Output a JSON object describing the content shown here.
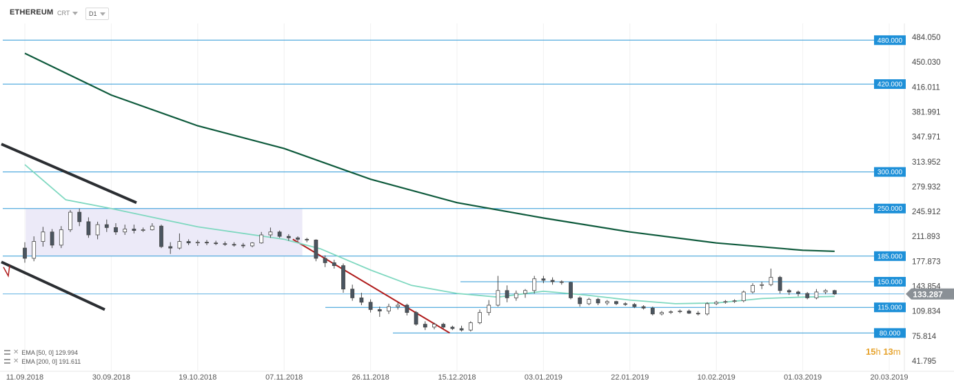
{
  "toolbar": {
    "symbol": "ETHEREUM",
    "type_label": "CRT",
    "timeframe": "D1"
  },
  "timer": {
    "hours": "15",
    "h_unit": "h",
    "minutes": "13",
    "m_unit": "m"
  },
  "indicators": [
    {
      "label": "EMA [50, 0] 129.994",
      "color": "#7fd8c0"
    },
    {
      "label": "EMA [200, 0] 191.611",
      "color": "#0e5a3c"
    }
  ],
  "chart_data": {
    "type": "candlestick",
    "ylim": [
      41.795,
      500
    ],
    "y_ticks": [
      "484.050",
      "450.030",
      "416.011",
      "381.991",
      "347.971",
      "313.952",
      "279.932",
      "245.912",
      "211.893",
      "177.873",
      "143.854",
      "109.834",
      "75.814",
      "41.795"
    ],
    "x_ticks": [
      "11.09.2018",
      "30.09.2018",
      "19.10.2018",
      "07.11.2018",
      "26.11.2018",
      "15.12.2018",
      "03.01.2019",
      "22.01.2019",
      "10.02.2019",
      "01.03.2019",
      "20.03.2019"
    ],
    "last_price": "133.287",
    "horizontal_levels": [
      {
        "label": "480.000",
        "value": 480
      },
      {
        "label": "420.000",
        "value": 420
      },
      {
        "label": "300.000",
        "value": 300
      },
      {
        "label": "250.000",
        "value": 250
      },
      {
        "label": "185.000",
        "value": 185
      },
      {
        "label": "150.000",
        "value": 150
      },
      {
        "label": "115.000",
        "value": 115
      },
      {
        "label": "80.000",
        "value": 80
      }
    ],
    "colors": {
      "level": "#2a97d6",
      "level_label_bg": "#1e90d8",
      "bull": "#ffffff",
      "bear": "#4a5560",
      "ema50": "#7fd8c0",
      "ema200": "#0e5a3c",
      "trend_red": "#b01c1c",
      "channel": "#2b2e32",
      "range_box": "#eceaf8",
      "last_badge": "#8a9096"
    },
    "ema200": [
      [
        "11.09.2018",
        462
      ],
      [
        "30.09.2018",
        405
      ],
      [
        "19.10.2018",
        363
      ],
      [
        "07.11.2018",
        332
      ],
      [
        "26.11.2018",
        290
      ],
      [
        "15.12.2018",
        258
      ],
      [
        "03.01.2019",
        237
      ],
      [
        "22.01.2019",
        218
      ],
      [
        "10.02.2019",
        203
      ],
      [
        "01.03.2019",
        193
      ],
      [
        "08.03.2019",
        191.6
      ]
    ],
    "ema50": [
      [
        "11.09.2018",
        310
      ],
      [
        "20.09.2018",
        262
      ],
      [
        "30.09.2018",
        250
      ],
      [
        "19.10.2018",
        225
      ],
      [
        "07.11.2018",
        208
      ],
      [
        "15.11.2018",
        195
      ],
      [
        "26.11.2018",
        166
      ],
      [
        "05.12.2018",
        145
      ],
      [
        "15.12.2018",
        134
      ],
      [
        "24.12.2018",
        129
      ],
      [
        "03.01.2019",
        137
      ],
      [
        "12.01.2019",
        132
      ],
      [
        "22.01.2019",
        125
      ],
      [
        "01.02.2019",
        120
      ],
      [
        "10.02.2019",
        121
      ],
      [
        "20.02.2019",
        127
      ],
      [
        "01.03.2019",
        129
      ],
      [
        "08.03.2019",
        130
      ]
    ],
    "candles": [
      [
        "11.09.2018",
        196,
        204,
        176,
        182
      ],
      [
        "13.09.2018",
        182,
        212,
        178,
        205
      ],
      [
        "15.09.2018",
        205,
        225,
        198,
        218
      ],
      [
        "17.09.2018",
        218,
        222,
        196,
        200
      ],
      [
        "19.09.2018",
        200,
        226,
        196,
        221
      ],
      [
        "21.09.2018",
        221,
        248,
        218,
        245
      ],
      [
        "23.09.2018",
        245,
        250,
        226,
        232
      ],
      [
        "25.09.2018",
        232,
        238,
        210,
        214
      ],
      [
        "27.09.2018",
        214,
        232,
        208,
        228
      ],
      [
        "29.09.2018",
        228,
        235,
        218,
        224
      ],
      [
        "01.10.2018",
        224,
        230,
        214,
        218
      ],
      [
        "03.10.2018",
        218,
        228,
        214,
        222
      ],
      [
        "05.10.2018",
        222,
        228,
        216,
        220
      ],
      [
        "07.10.2018",
        220,
        224,
        218,
        221
      ],
      [
        "09.10.2018",
        221,
        230,
        220,
        226
      ],
      [
        "11.10.2018",
        226,
        228,
        196,
        198
      ],
      [
        "13.10.2018",
        198,
        204,
        188,
        196
      ],
      [
        "15.10.2018",
        196,
        216,
        194,
        205
      ],
      [
        "17.10.2018",
        205,
        208,
        200,
        203
      ],
      [
        "19.10.2018",
        203,
        207,
        199,
        204
      ],
      [
        "21.10.2018",
        204,
        207,
        200,
        203
      ],
      [
        "23.10.2018",
        203,
        206,
        200,
        202
      ],
      [
        "25.10.2018",
        202,
        205,
        199,
        201
      ],
      [
        "27.10.2018",
        201,
        204,
        198,
        200
      ],
      [
        "29.10.2018",
        200,
        203,
        196,
        199
      ],
      [
        "31.10.2018",
        199,
        204,
        197,
        203
      ],
      [
        "02.11.2018",
        203,
        218,
        202,
        214
      ],
      [
        "04.11.2018",
        214,
        224,
        210,
        218
      ],
      [
        "06.11.2018",
        218,
        220,
        210,
        212
      ],
      [
        "08.11.2018",
        212,
        215,
        206,
        210
      ],
      [
        "10.11.2018",
        210,
        212,
        205,
        208
      ],
      [
        "12.11.2018",
        208,
        210,
        204,
        207
      ],
      [
        "14.11.2018",
        207,
        208,
        178,
        182
      ],
      [
        "16.11.2018",
        182,
        186,
        170,
        176
      ],
      [
        "18.11.2018",
        176,
        180,
        168,
        172
      ],
      [
        "20.11.2018",
        172,
        175,
        135,
        140
      ],
      [
        "22.11.2018",
        140,
        146,
        124,
        128
      ],
      [
        "24.11.2018",
        128,
        135,
        118,
        122
      ],
      [
        "26.11.2018",
        122,
        126,
        108,
        112
      ],
      [
        "28.11.2018",
        112,
        116,
        102,
        110
      ],
      [
        "30.11.2018",
        110,
        120,
        106,
        116
      ],
      [
        "02.12.2018",
        116,
        122,
        112,
        118
      ],
      [
        "04.12.2018",
        118,
        120,
        104,
        108
      ],
      [
        "06.12.2018",
        108,
        110,
        90,
        92
      ],
      [
        "08.12.2018",
        92,
        96,
        84,
        88
      ],
      [
        "10.12.2018",
        88,
        94,
        85,
        92
      ],
      [
        "12.12.2018",
        92,
        94,
        86,
        88
      ],
      [
        "14.12.2018",
        88,
        90,
        84,
        86
      ],
      [
        "16.12.2018",
        86,
        90,
        82,
        84
      ],
      [
        "18.12.2018",
        84,
        96,
        82,
        94
      ],
      [
        "20.12.2018",
        94,
        112,
        92,
        108
      ],
      [
        "22.12.2018",
        108,
        125,
        104,
        118
      ],
      [
        "24.12.2018",
        118,
        158,
        116,
        138
      ],
      [
        "26.12.2018",
        138,
        145,
        122,
        128
      ],
      [
        "28.12.2018",
        128,
        138,
        124,
        134
      ],
      [
        "30.12.2018",
        134,
        140,
        128,
        138
      ],
      [
        "01.01.2019",
        138,
        158,
        134,
        154
      ],
      [
        "03.01.2019",
        154,
        158,
        148,
        152
      ],
      [
        "05.01.2019",
        152,
        156,
        146,
        150
      ],
      [
        "07.01.2019",
        150,
        152,
        146,
        149
      ],
      [
        "09.01.2019",
        149,
        150,
        126,
        128
      ],
      [
        "11.01.2019",
        128,
        130,
        116,
        120
      ],
      [
        "13.01.2019",
        120,
        128,
        118,
        126
      ],
      [
        "15.01.2019",
        126,
        128,
        118,
        121
      ],
      [
        "17.01.2019",
        121,
        125,
        118,
        123
      ],
      [
        "19.01.2019",
        123,
        124,
        118,
        120
      ],
      [
        "21.01.2019",
        120,
        122,
        117,
        119
      ],
      [
        "23.01.2019",
        119,
        121,
        114,
        116
      ],
      [
        "25.01.2019",
        116,
        118,
        112,
        114
      ],
      [
        "27.01.2019",
        114,
        116,
        104,
        106
      ],
      [
        "29.01.2019",
        106,
        110,
        104,
        108
      ],
      [
        "31.01.2019",
        108,
        111,
        106,
        109
      ],
      [
        "02.02.2019",
        109,
        112,
        107,
        110
      ],
      [
        "04.02.2019",
        110,
        112,
        106,
        107
      ],
      [
        "06.02.2019",
        107,
        110,
        104,
        106
      ],
      [
        "08.02.2019",
        106,
        122,
        104,
        120
      ],
      [
        "10.02.2019",
        120,
        124,
        118,
        122
      ],
      [
        "12.02.2019",
        122,
        125,
        120,
        123
      ],
      [
        "14.02.2019",
        123,
        126,
        121,
        124
      ],
      [
        "16.02.2019",
        124,
        138,
        122,
        136
      ],
      [
        "18.02.2019",
        136,
        148,
        134,
        145
      ],
      [
        "20.02.2019",
        145,
        150,
        140,
        146
      ],
      [
        "22.02.2019",
        146,
        168,
        144,
        156
      ],
      [
        "24.02.2019",
        156,
        158,
        134,
        138
      ],
      [
        "26.02.2019",
        138,
        140,
        132,
        136
      ],
      [
        "28.02.2019",
        136,
        138,
        130,
        134
      ],
      [
        "02.03.2019",
        134,
        136,
        126,
        128
      ],
      [
        "04.03.2019",
        128,
        140,
        126,
        136
      ],
      [
        "06.03.2019",
        136,
        140,
        133,
        138
      ],
      [
        "08.03.2019",
        138,
        139,
        132,
        133.3
      ]
    ]
  }
}
